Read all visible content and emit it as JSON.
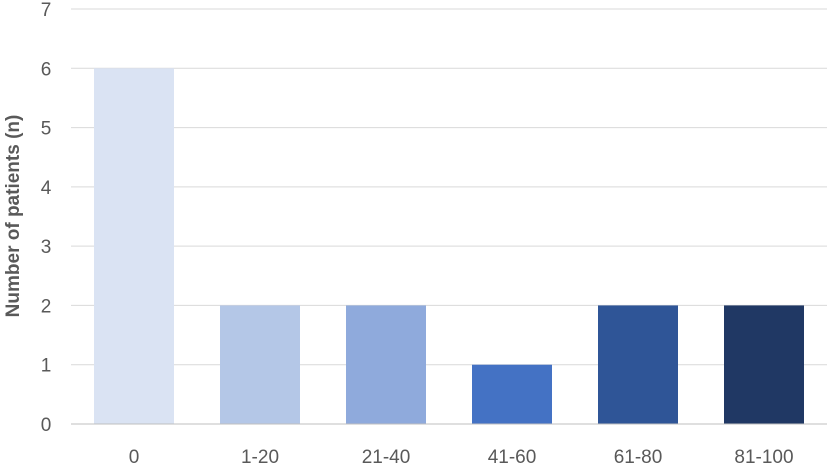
{
  "chart_data": {
    "type": "bar",
    "categories": [
      "0",
      "1-20",
      "21-40",
      "41-60",
      "61-80",
      "81-100"
    ],
    "values": [
      6,
      2,
      2,
      1,
      2,
      2
    ],
    "colors": [
      "#dae3f3",
      "#b4c7e7",
      "#8faadc",
      "#4472c4",
      "#2f5597",
      "#203864"
    ],
    "ylabel": "Number of patients (n)",
    "xlabel": "",
    "title": "",
    "ylim": [
      0,
      7
    ],
    "yticks": [
      "0",
      "1",
      "2",
      "3",
      "4",
      "5",
      "6",
      "7"
    ],
    "grid": true,
    "legend": "none"
  }
}
